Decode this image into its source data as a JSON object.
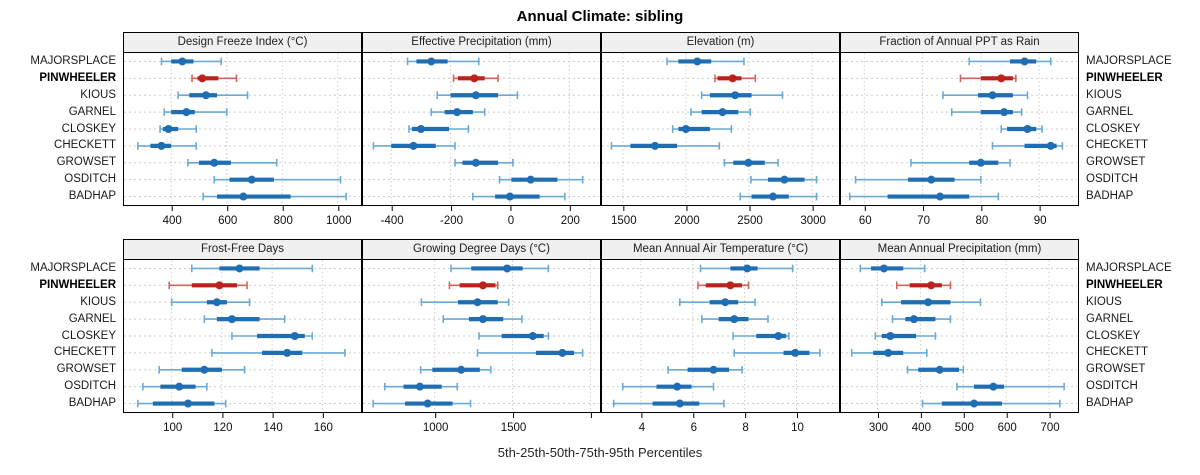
{
  "title": "Annual Climate: sibling",
  "caption": "5th-25th-50th-75th-95th Percentiles",
  "colors": {
    "blue_dark": "#1f6eb3",
    "blue_light": "#6aaad4",
    "red_dark": "#bb211d",
    "red_light": "#d5645c",
    "header_bg": "#f0f0f0",
    "grid": "#cdcdcd",
    "panel_border": "#000000",
    "tick": "#000000"
  },
  "chart_data": {
    "type": "scatter",
    "subtype": "dot-and-percentile-interval-trellis",
    "title": "Annual Climate: sibling",
    "caption": "5th-25th-50th-75th-95th Percentiles",
    "percentiles": [
      5,
      25,
      50,
      75,
      95
    ],
    "stations": [
      "MAJORSPLACE",
      "PINWHEELER",
      "KIOUS",
      "GARNEL",
      "CLOSKEY",
      "CHECKETT",
      "GROWSET",
      "OSDITCH",
      "BADHAP"
    ],
    "highlighted_station": "PINWHEELER",
    "legend_position": "none",
    "grid": "dotted",
    "panels": [
      {
        "title": "Design Freeze Index (°C)",
        "xlim": [
          230,
          1080
        ],
        "tick_values": [
          400,
          600,
          800,
          1000
        ],
        "tick_labels": [
          "400",
          "600",
          "800",
          "1000"
        ],
        "values": {
          "MAJORSPLACE": [
            365,
            400,
            440,
            480,
            580
          ],
          "PINWHEELER": [
            475,
            495,
            512,
            570,
            635
          ],
          "KIOUS": [
            425,
            465,
            525,
            565,
            675
          ],
          "GARNEL": [
            375,
            400,
            455,
            485,
            600
          ],
          "CLOSKEY": [
            360,
            370,
            390,
            425,
            490
          ],
          "CHECKETT": [
            280,
            325,
            365,
            400,
            490
          ],
          "GROWSET": [
            460,
            500,
            555,
            615,
            780
          ],
          "OSDITCH": [
            555,
            610,
            690,
            770,
            1010
          ],
          "BADHAP": [
            515,
            565,
            660,
            830,
            1030
          ]
        }
      },
      {
        "title": "Effective Precipitation (mm)",
        "xlim": [
          -495,
          300
        ],
        "tick_values": [
          -400,
          -200,
          0,
          200
        ],
        "tick_labels": [
          "-400",
          "-200",
          "0",
          "200"
        ],
        "values": {
          "MAJORSPLACE": [
            -345,
            -315,
            -265,
            -210,
            -105
          ],
          "PINWHEELER": [
            -190,
            -175,
            -120,
            -85,
            -40
          ],
          "KIOUS": [
            -245,
            -200,
            -115,
            -40,
            25
          ],
          "GARNEL": [
            -265,
            -220,
            -178,
            -125,
            -85
          ],
          "CLOSKEY": [
            -340,
            -330,
            -300,
            -205,
            -140
          ],
          "CHECKETT": [
            -460,
            -400,
            -325,
            -250,
            -185
          ],
          "GROWSET": [
            -185,
            -160,
            -115,
            -40,
            10
          ],
          "OSDITCH": [
            -35,
            5,
            70,
            160,
            245
          ],
          "BADHAP": [
            -125,
            -50,
            0,
            100,
            185
          ]
        }
      },
      {
        "title": "Elevation (m)",
        "xlim": [
          1335,
          3205
        ],
        "tick_values": [
          1500,
          2000,
          2500,
          3000
        ],
        "tick_labels": [
          "1500",
          "2000",
          "2500",
          "3000"
        ],
        "values": {
          "MAJORSPLACE": [
            1850,
            1940,
            2090,
            2200,
            2460
          ],
          "PINWHEELER": [
            2230,
            2250,
            2370,
            2440,
            2550
          ],
          "KIOUS": [
            2125,
            2190,
            2390,
            2520,
            2765
          ],
          "GARNEL": [
            2040,
            2125,
            2290,
            2415,
            2510
          ],
          "CLOSKEY": [
            1895,
            1940,
            2000,
            2190,
            2360
          ],
          "CHECKETT": [
            1410,
            1560,
            1755,
            1930,
            2265
          ],
          "GROWSET": [
            2305,
            2375,
            2495,
            2625,
            2730
          ],
          "OSDITCH": [
            2515,
            2650,
            2780,
            2940,
            3035
          ],
          "BADHAP": [
            2430,
            2520,
            2690,
            2815,
            3035
          ]
        }
      },
      {
        "title": "Fraction of Annual PPT as Rain",
        "xlim": [
          56,
          96.5
        ],
        "tick_values": [
          60,
          70,
          80,
          90
        ],
        "tick_labels": [
          "60",
          "70",
          "80",
          "90"
        ],
        "values": {
          "MAJORSPLACE": [
            78,
            85,
            87.5,
            89.5,
            92
          ],
          "PINWHEELER": [
            76.5,
            80,
            83.5,
            85.5,
            86
          ],
          "KIOUS": [
            73.5,
            79.5,
            82,
            85.5,
            88
          ],
          "GARNEL": [
            75,
            80,
            84,
            85.5,
            87
          ],
          "CLOSKEY": [
            83.5,
            84.5,
            88,
            89.5,
            90.5
          ],
          "CHECKETT": [
            82,
            87.5,
            92,
            93,
            94
          ],
          "GROWSET": [
            68,
            78,
            80,
            83,
            85
          ],
          "OSDITCH": [
            58.5,
            67.5,
            71.5,
            75.5,
            80
          ],
          "BADHAP": [
            57.5,
            64,
            73,
            78,
            83
          ]
        }
      },
      {
        "title": "Frost-Free Days",
        "xlim": [
          81,
          175
        ],
        "tick_values": [
          100,
          120,
          140,
          160
        ],
        "tick_labels": [
          "100",
          "120",
          "140",
          "160"
        ],
        "values": {
          "MAJORSPLACE": [
            108,
            119,
            127,
            135,
            156
          ],
          "PINWHEELER": [
            99,
            108,
            119,
            126,
            130
          ],
          "KIOUS": [
            100,
            114,
            118,
            122,
            131
          ],
          "GARNEL": [
            113,
            118,
            124,
            135,
            145
          ],
          "CLOSKEY": [
            124,
            134,
            149,
            153,
            156
          ],
          "CHECKETT": [
            116,
            136,
            146,
            152,
            169
          ],
          "GROWSET": [
            95,
            104,
            113,
            120,
            129
          ],
          "OSDITCH": [
            88.5,
            95.5,
            103,
            109.5,
            114
          ],
          "BADHAP": [
            86.5,
            92.5,
            106.5,
            117,
            121.5
          ]
        }
      },
      {
        "title": "Growing Degree Days (°C)",
        "xlim": [
          540,
          2055
        ],
        "tick_values": [
          1000,
          1500,
          2000
        ],
        "tick_labels": [
          "1000",
          "1500",
          ""
        ],
        "values": {
          "MAJORSPLACE": [
            1105,
            1235,
            1465,
            1565,
            1730
          ],
          "PINWHEELER": [
            1095,
            1160,
            1310,
            1390,
            1405
          ],
          "KIOUS": [
            915,
            1150,
            1275,
            1405,
            1475
          ],
          "GARNEL": [
            1055,
            1220,
            1310,
            1440,
            1560
          ],
          "CLOSKEY": [
            1285,
            1430,
            1630,
            1700,
            1730
          ],
          "CHECKETT": [
            1275,
            1650,
            1820,
            1895,
            1950
          ],
          "GROWSET": [
            910,
            985,
            1170,
            1290,
            1360
          ],
          "OSDITCH": [
            680,
            800,
            905,
            1045,
            1145
          ],
          "BADHAP": [
            605,
            810,
            955,
            1115,
            1230
          ]
        }
      },
      {
        "title": "Mean Annual Air Temperature (°C)",
        "xlim": [
          2.5,
          11.6
        ],
        "tick_values": [
          4,
          6,
          8,
          10
        ],
        "tick_labels": [
          "4",
          "6",
          "8",
          "10"
        ],
        "values": {
          "MAJORSPLACE": [
            6.3,
            7.45,
            8.1,
            8.5,
            9.85
          ],
          "PINWHEELER": [
            6.2,
            6.5,
            7.45,
            7.9,
            8.15
          ],
          "KIOUS": [
            5.5,
            6.65,
            7.25,
            7.75,
            8.4
          ],
          "GARNEL": [
            6.35,
            7.0,
            7.6,
            8.15,
            8.9
          ],
          "CLOSKEY": [
            7.55,
            8.45,
            9.3,
            9.6,
            9.7
          ],
          "CHECKETT": [
            7.6,
            9.5,
            9.95,
            10.5,
            10.9
          ],
          "GROWSET": [
            5.05,
            5.8,
            6.8,
            7.4,
            7.9
          ],
          "OSDITCH": [
            3.3,
            4.6,
            5.4,
            5.95,
            6.8
          ],
          "BADHAP": [
            2.95,
            4.45,
            5.5,
            6.25,
            7.2
          ]
        }
      },
      {
        "title": "Mean Annual Precipitation (mm)",
        "xlim": [
          215,
          765
        ],
        "tick_values": [
          300,
          400,
          500,
          600,
          700
        ],
        "tick_labels": [
          "300",
          "400",
          "500",
          "600",
          "700"
        ],
        "values": {
          "MAJORSPLACE": [
            260,
            285,
            315,
            360,
            410
          ],
          "PINWHEELER": [
            345,
            375,
            425,
            450,
            470
          ],
          "KIOUS": [
            310,
            355,
            418,
            470,
            540
          ],
          "GARNEL": [
            335,
            365,
            385,
            435,
            470
          ],
          "CLOSKEY": [
            295,
            310,
            330,
            390,
            435
          ],
          "CHECKETT": [
            240,
            290,
            325,
            360,
            415
          ],
          "GROWSET": [
            370,
            395,
            445,
            490,
            500
          ],
          "OSDITCH": [
            485,
            525,
            570,
            595,
            735
          ],
          "BADHAP": [
            405,
            450,
            525,
            590,
            725
          ]
        }
      }
    ]
  }
}
